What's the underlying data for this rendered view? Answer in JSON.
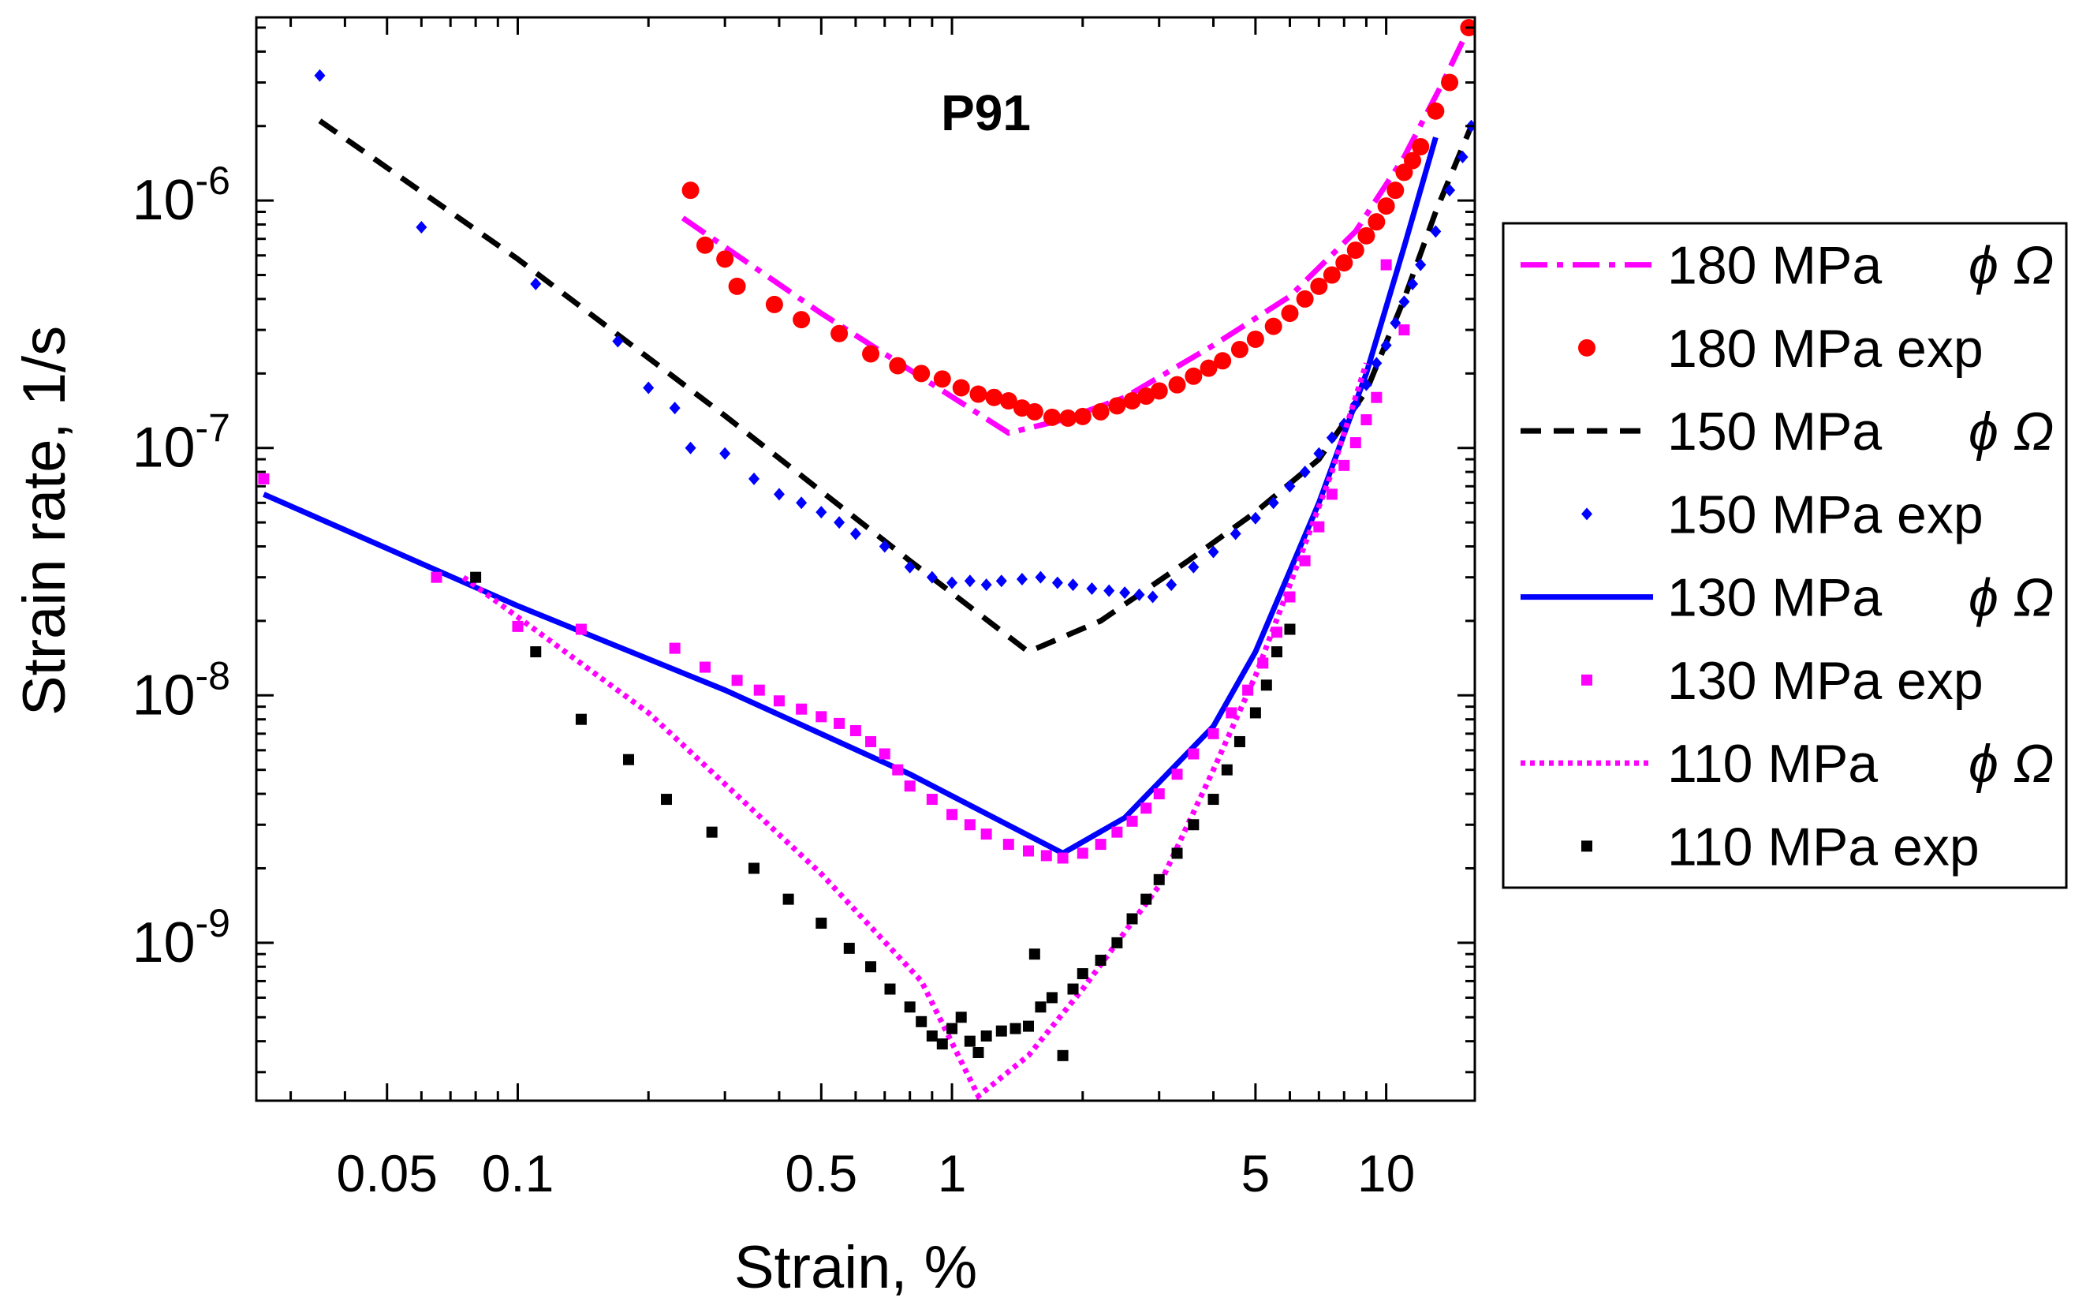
{
  "chart_data": {
    "type": "line",
    "title": "P91",
    "xlabel": "Strain, %",
    "ylabel": "Strain rate, 1/s",
    "xscale": "log",
    "yscale": "log",
    "xlim": [
      0.025,
      16
    ],
    "ylim": [
      2.3e-10,
      5.5e-06
    ],
    "xticks": [
      {
        "value": 0.05,
        "label": "0.05"
      },
      {
        "value": 0.1,
        "label": "0.1"
      },
      {
        "value": 0.5,
        "label": "0.5"
      },
      {
        "value": 1,
        "label": "1"
      },
      {
        "value": 5,
        "label": "5"
      },
      {
        "value": 10,
        "label": "10"
      }
    ],
    "yticks": [
      {
        "value": 1e-09,
        "base": "10",
        "exp": "-9"
      },
      {
        "value": 1e-08,
        "base": "10",
        "exp": "-8"
      },
      {
        "value": 1e-07,
        "base": "10",
        "exp": "-7"
      },
      {
        "value": 1e-06,
        "base": "10",
        "exp": "-6"
      }
    ],
    "grid": false,
    "legend_position": "outside-right",
    "series": [
      {
        "name": "180 MPa",
        "symbol": "ϕ Ω",
        "kind": "model",
        "color": "#ff00ff",
        "style": "dashdot",
        "points": [
          [
            0.24,
            8.5e-07
          ],
          [
            0.5,
            3.5e-07
          ],
          [
            1.35,
            1.15e-07
          ],
          [
            1.8,
            1.3e-07
          ],
          [
            2.5,
            1.6e-07
          ],
          [
            4,
            2.6e-07
          ],
          [
            6,
            4.1e-07
          ],
          [
            8.5,
            7.5e-07
          ],
          [
            11,
            1.5e-06
          ],
          [
            13.5,
            3e-06
          ],
          [
            15.7,
            5.2e-06
          ]
        ]
      },
      {
        "name": "180 MPa exp",
        "symbol": "",
        "kind": "exp",
        "color": "#ff0000",
        "marker": "circle",
        "points": [
          [
            0.25,
            1.1e-06
          ],
          [
            0.27,
            6.6e-07
          ],
          [
            0.3,
            5.8e-07
          ],
          [
            0.32,
            4.5e-07
          ],
          [
            0.39,
            3.8e-07
          ],
          [
            0.45,
            3.3e-07
          ],
          [
            0.55,
            2.9e-07
          ],
          [
            0.65,
            2.4e-07
          ],
          [
            0.75,
            2.15e-07
          ],
          [
            0.85,
            2e-07
          ],
          [
            0.95,
            1.9e-07
          ],
          [
            1.05,
            1.75e-07
          ],
          [
            1.15,
            1.65e-07
          ],
          [
            1.25,
            1.6e-07
          ],
          [
            1.35,
            1.55e-07
          ],
          [
            1.45,
            1.45e-07
          ],
          [
            1.55,
            1.4e-07
          ],
          [
            1.7,
            1.33e-07
          ],
          [
            1.85,
            1.32e-07
          ],
          [
            2,
            1.34e-07
          ],
          [
            2.2,
            1.4e-07
          ],
          [
            2.4,
            1.48e-07
          ],
          [
            2.6,
            1.55e-07
          ],
          [
            2.8,
            1.62e-07
          ],
          [
            3,
            1.7e-07
          ],
          [
            3.3,
            1.8e-07
          ],
          [
            3.6,
            1.95e-07
          ],
          [
            3.9,
            2.1e-07
          ],
          [
            4.2,
            2.25e-07
          ],
          [
            4.6,
            2.5e-07
          ],
          [
            5,
            2.75e-07
          ],
          [
            5.5,
            3.1e-07
          ],
          [
            6,
            3.5e-07
          ],
          [
            6.5,
            4e-07
          ],
          [
            7,
            4.5e-07
          ],
          [
            7.5,
            5e-07
          ],
          [
            8,
            5.6e-07
          ],
          [
            8.5,
            6.3e-07
          ],
          [
            9,
            7.2e-07
          ],
          [
            9.5,
            8.2e-07
          ],
          [
            10,
            9.5e-07
          ],
          [
            10.5,
            1.1e-06
          ],
          [
            11,
            1.3e-06
          ],
          [
            11.5,
            1.45e-06
          ],
          [
            12,
            1.65e-06
          ],
          [
            13,
            2.3e-06
          ],
          [
            14,
            3e-06
          ],
          [
            15.5,
            5e-06
          ]
        ]
      },
      {
        "name": "150 MPa",
        "symbol": "ϕ Ω",
        "kind": "model",
        "color": "#000000",
        "style": "dashed",
        "points": [
          [
            0.035,
            2.1e-06
          ],
          [
            0.1,
            5.8e-07
          ],
          [
            0.3,
            1.35e-07
          ],
          [
            0.8,
            3.5e-08
          ],
          [
            1.5,
            1.5e-08
          ],
          [
            2.2,
            2e-08
          ],
          [
            3.5,
            3.5e-08
          ],
          [
            5,
            5.5e-08
          ],
          [
            7,
            9e-08
          ],
          [
            9,
            1.7e-07
          ],
          [
            11,
            4e-07
          ],
          [
            13,
            9e-07
          ],
          [
            15.7,
            2e-06
          ]
        ]
      },
      {
        "name": "150 MPa exp",
        "symbol": "",
        "kind": "exp",
        "color": "#0000ff",
        "marker": "diamond",
        "points": [
          [
            0.035,
            3.2e-06
          ],
          [
            0.06,
            7.8e-07
          ],
          [
            0.11,
            4.6e-07
          ],
          [
            0.17,
            2.7e-07
          ],
          [
            0.2,
            1.75e-07
          ],
          [
            0.23,
            1.45e-07
          ],
          [
            0.25,
            1e-07
          ],
          [
            0.3,
            9.5e-08
          ],
          [
            0.35,
            7.5e-08
          ],
          [
            0.4,
            6.5e-08
          ],
          [
            0.45,
            6e-08
          ],
          [
            0.5,
            5.5e-08
          ],
          [
            0.55,
            5e-08
          ],
          [
            0.6,
            4.5e-08
          ],
          [
            0.7,
            4e-08
          ],
          [
            0.8,
            3.3e-08
          ],
          [
            0.9,
            3e-08
          ],
          [
            1,
            2.85e-08
          ],
          [
            1.1,
            2.9e-08
          ],
          [
            1.2,
            2.8e-08
          ],
          [
            1.3,
            2.9e-08
          ],
          [
            1.45,
            2.95e-08
          ],
          [
            1.6,
            3e-08
          ],
          [
            1.75,
            2.85e-08
          ],
          [
            1.9,
            2.8e-08
          ],
          [
            2.1,
            2.7e-08
          ],
          [
            2.3,
            2.65e-08
          ],
          [
            2.5,
            2.6e-08
          ],
          [
            2.7,
            2.55e-08
          ],
          [
            2.9,
            2.5e-08
          ],
          [
            3.2,
            2.8e-08
          ],
          [
            3.6,
            3.3e-08
          ],
          [
            4,
            3.8e-08
          ],
          [
            4.5,
            4.5e-08
          ],
          [
            5,
            5.2e-08
          ],
          [
            5.5,
            6e-08
          ],
          [
            6,
            7e-08
          ],
          [
            6.5,
            8e-08
          ],
          [
            7,
            9.5e-08
          ],
          [
            7.5,
            1.1e-07
          ],
          [
            8,
            1.25e-07
          ],
          [
            8.5,
            1.5e-07
          ],
          [
            9,
            1.8e-07
          ],
          [
            9.5,
            2.2e-07
          ],
          [
            10,
            2.6e-07
          ],
          [
            10.5,
            3.2e-07
          ],
          [
            11,
            3.9e-07
          ],
          [
            11.5,
            4.6e-07
          ],
          [
            12,
            5.5e-07
          ],
          [
            13,
            7.5e-07
          ],
          [
            14,
            1.1e-06
          ],
          [
            15,
            1.5e-06
          ],
          [
            15.7,
            2e-06
          ]
        ]
      },
      {
        "name": "130 MPa",
        "symbol": "ϕ Ω",
        "kind": "model",
        "color": "#0000ff",
        "style": "solid",
        "points": [
          [
            0.026,
            6.5e-08
          ],
          [
            0.1,
            2.3e-08
          ],
          [
            0.3,
            1.05e-08
          ],
          [
            0.8,
            4.8e-09
          ],
          [
            1.8,
            2.3e-09
          ],
          [
            2.5,
            3.2e-09
          ],
          [
            4,
            7.5e-09
          ],
          [
            5,
            1.5e-08
          ],
          [
            7,
            6e-08
          ],
          [
            9,
            2e-07
          ],
          [
            11,
            6.5e-07
          ],
          [
            13,
            1.8e-06
          ]
        ]
      },
      {
        "name": "130 MPa exp",
        "symbol": "",
        "kind": "exp",
        "color": "#ff00ff",
        "marker": "square",
        "points": [
          [
            0.026,
            7.5e-08
          ],
          [
            0.065,
            3e-08
          ],
          [
            0.1,
            1.9e-08
          ],
          [
            0.14,
            1.85e-08
          ],
          [
            0.23,
            1.55e-08
          ],
          [
            0.27,
            1.3e-08
          ],
          [
            0.32,
            1.15e-08
          ],
          [
            0.36,
            1.05e-08
          ],
          [
            0.4,
            9.5e-09
          ],
          [
            0.45,
            8.8e-09
          ],
          [
            0.5,
            8.2e-09
          ],
          [
            0.55,
            7.7e-09
          ],
          [
            0.6,
            7.2e-09
          ],
          [
            0.65,
            6.5e-09
          ],
          [
            0.7,
            5.8e-09
          ],
          [
            0.75,
            5e-09
          ],
          [
            0.8,
            4.3e-09
          ],
          [
            0.9,
            3.8e-09
          ],
          [
            1,
            3.3e-09
          ],
          [
            1.1,
            3e-09
          ],
          [
            1.2,
            2.75e-09
          ],
          [
            1.35,
            2.5e-09
          ],
          [
            1.5,
            2.35e-09
          ],
          [
            1.65,
            2.25e-09
          ],
          [
            1.8,
            2.2e-09
          ],
          [
            2,
            2.3e-09
          ],
          [
            2.2,
            2.5e-09
          ],
          [
            2.4,
            2.8e-09
          ],
          [
            2.6,
            3.1e-09
          ],
          [
            2.8,
            3.5e-09
          ],
          [
            3,
            4e-09
          ],
          [
            3.3,
            4.8e-09
          ],
          [
            3.6,
            5.8e-09
          ],
          [
            4,
            7e-09
          ],
          [
            4.4,
            8.5e-09
          ],
          [
            4.8,
            1.05e-08
          ],
          [
            5.2,
            1.35e-08
          ],
          [
            5.6,
            1.8e-08
          ],
          [
            6,
            2.5e-08
          ],
          [
            6.5,
            3.5e-08
          ],
          [
            7,
            4.8e-08
          ],
          [
            7.5,
            6.5e-08
          ],
          [
            8,
            8.5e-08
          ],
          [
            8.5,
            1.05e-07
          ],
          [
            9,
            1.3e-07
          ],
          [
            9.5,
            1.6e-07
          ],
          [
            10,
            5.5e-07
          ],
          [
            11,
            3e-07
          ]
        ]
      },
      {
        "name": "110 MPa",
        "symbol": "ϕ Ω",
        "kind": "model",
        "color": "#ff00ff",
        "style": "dotted",
        "points": [
          [
            0.075,
            3e-08
          ],
          [
            0.2,
            8.5e-09
          ],
          [
            0.5,
            1.9e-09
          ],
          [
            0.85,
            7e-10
          ],
          [
            1.15,
            2.4e-10
          ],
          [
            1.5,
            3.5e-10
          ],
          [
            2,
            6.5e-10
          ],
          [
            3,
            1.7e-09
          ],
          [
            4,
            5e-09
          ],
          [
            5,
            1.2e-08
          ],
          [
            6,
            2.8e-08
          ],
          [
            7.5,
            8e-08
          ],
          [
            9,
            2.2e-07
          ]
        ]
      },
      {
        "name": "110 MPa exp",
        "symbol": "",
        "kind": "exp",
        "color": "#000000",
        "marker": "square",
        "points": [
          [
            0.08,
            3e-08
          ],
          [
            0.11,
            1.5e-08
          ],
          [
            0.14,
            8e-09
          ],
          [
            0.18,
            5.5e-09
          ],
          [
            0.22,
            3.8e-09
          ],
          [
            0.28,
            2.8e-09
          ],
          [
            0.35,
            2e-09
          ],
          [
            0.42,
            1.5e-09
          ],
          [
            0.5,
            1.2e-09
          ],
          [
            0.58,
            9.5e-10
          ],
          [
            0.65,
            8e-10
          ],
          [
            0.72,
            6.5e-10
          ],
          [
            0.8,
            5.5e-10
          ],
          [
            0.85,
            4.8e-10
          ],
          [
            0.9,
            4.2e-10
          ],
          [
            0.95,
            3.9e-10
          ],
          [
            1,
            4.5e-10
          ],
          [
            1.05,
            5e-10
          ],
          [
            1.1,
            4e-10
          ],
          [
            1.15,
            3.6e-10
          ],
          [
            1.2,
            4.2e-10
          ],
          [
            1.3,
            4.4e-10
          ],
          [
            1.4,
            4.5e-10
          ],
          [
            1.5,
            4.6e-10
          ],
          [
            1.55,
            9e-10
          ],
          [
            1.6,
            5.5e-10
          ],
          [
            1.7,
            6e-10
          ],
          [
            1.8,
            3.5e-10
          ],
          [
            1.9,
            6.5e-10
          ],
          [
            2,
            7.5e-10
          ],
          [
            2.2,
            8.5e-10
          ],
          [
            2.4,
            1e-09
          ],
          [
            2.6,
            1.25e-09
          ],
          [
            2.8,
            1.5e-09
          ],
          [
            3,
            1.8e-09
          ],
          [
            3.3,
            2.3e-09
          ],
          [
            3.6,
            3e-09
          ],
          [
            4,
            3.8e-09
          ],
          [
            4.3,
            5e-09
          ],
          [
            4.6,
            6.5e-09
          ],
          [
            5,
            8.5e-09
          ],
          [
            5.3,
            1.1e-08
          ],
          [
            5.6,
            1.5e-08
          ],
          [
            6,
            1.85e-08
          ]
        ]
      }
    ]
  }
}
